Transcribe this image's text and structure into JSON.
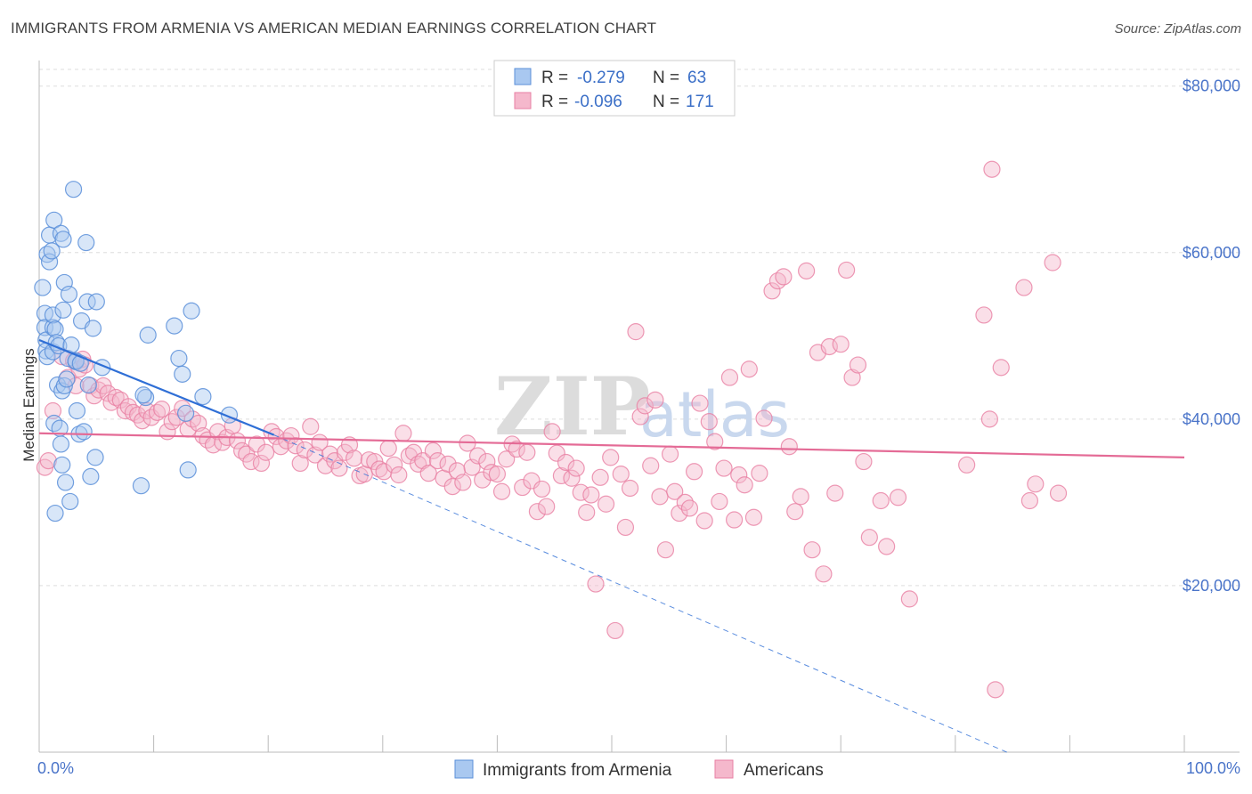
{
  "title": "IMMIGRANTS FROM ARMENIA VS AMERICAN MEDIAN EARNINGS CORRELATION CHART",
  "source": "Source: ZipAtlas.com",
  "watermark": {
    "zip": "ZIP",
    "atlas": "atlas"
  },
  "colors": {
    "blue_fill": "#a9c8f0",
    "blue_stroke": "#5b8fd9",
    "blue_line": "#2f6fd6",
    "pink_fill": "#f5b8cc",
    "pink_stroke": "#e87fa3",
    "pink_line": "#e46b96",
    "grid": "#dddddd",
    "tick_text": "#4a74c9"
  },
  "legend": {
    "rows": [
      {
        "r_label": "R =",
        "r_value": "-0.279",
        "n_label": "N =",
        "n_value": "63"
      },
      {
        "r_label": "R =",
        "r_value": "-0.096",
        "n_label": "N =",
        "n_value": "171"
      }
    ]
  },
  "bottom_legend": [
    "Immigrants from Armenia",
    "Americans"
  ],
  "chart_data": {
    "type": "scatter",
    "title": "IMMIGRANTS FROM ARMENIA VS AMERICAN MEDIAN EARNINGS CORRELATION CHART",
    "xlabel": "",
    "ylabel": "Median Earnings",
    "xlim": [
      0,
      100
    ],
    "ylim": [
      0,
      82000
    ],
    "x_tick_labels": [
      "0.0%",
      "100.0%"
    ],
    "y_ticks": [
      20000,
      40000,
      60000,
      80000
    ],
    "y_tick_labels": [
      "$20,000",
      "$40,000",
      "$60,000",
      "$80,000"
    ],
    "series": [
      {
        "name": "Immigrants from Armenia",
        "color": "blue",
        "points": [
          [
            0.3,
            55800
          ],
          [
            0.5,
            52700
          ],
          [
            0.5,
            51000
          ],
          [
            0.6,
            49500
          ],
          [
            0.6,
            48200
          ],
          [
            0.7,
            59800
          ],
          [
            0.7,
            47500
          ],
          [
            0.9,
            62100
          ],
          [
            0.9,
            58900
          ],
          [
            1.1,
            60200
          ],
          [
            1.2,
            48100
          ],
          [
            1.2,
            51000
          ],
          [
            1.2,
            52500
          ],
          [
            1.3,
            63900
          ],
          [
            1.3,
            39500
          ],
          [
            1.4,
            50800
          ],
          [
            1.4,
            28700
          ],
          [
            1.5,
            49200
          ],
          [
            1.6,
            44100
          ],
          [
            1.7,
            48800
          ],
          [
            1.8,
            38900
          ],
          [
            1.9,
            62300
          ],
          [
            1.9,
            37000
          ],
          [
            2.0,
            34500
          ],
          [
            2.0,
            43400
          ],
          [
            2.1,
            61600
          ],
          [
            2.1,
            53100
          ],
          [
            2.2,
            56400
          ],
          [
            2.2,
            44000
          ],
          [
            2.3,
            32400
          ],
          [
            2.4,
            44800
          ],
          [
            2.5,
            47300
          ],
          [
            2.6,
            55000
          ],
          [
            2.7,
            30100
          ],
          [
            2.8,
            48900
          ],
          [
            3.0,
            67600
          ],
          [
            3.2,
            46900
          ],
          [
            3.2,
            47000
          ],
          [
            3.3,
            41000
          ],
          [
            3.5,
            38200
          ],
          [
            3.6,
            46700
          ],
          [
            3.7,
            51800
          ],
          [
            3.9,
            38500
          ],
          [
            4.1,
            61200
          ],
          [
            4.2,
            54100
          ],
          [
            4.3,
            44100
          ],
          [
            4.5,
            33100
          ],
          [
            4.7,
            50900
          ],
          [
            4.9,
            35400
          ],
          [
            5.0,
            54100
          ],
          [
            5.5,
            46200
          ],
          [
            8.9,
            32000
          ],
          [
            9.3,
            42600
          ],
          [
            9.5,
            50100
          ],
          [
            11.8,
            51200
          ],
          [
            12.2,
            47300
          ],
          [
            12.5,
            45400
          ],
          [
            12.8,
            40700
          ],
          [
            13.0,
            33900
          ],
          [
            13.3,
            53000
          ],
          [
            14.3,
            42700
          ],
          [
            16.6,
            40500
          ],
          [
            9.1,
            42900
          ]
        ]
      },
      {
        "name": "Americans",
        "color": "pink",
        "points": [
          [
            0.5,
            34200
          ],
          [
            0.8,
            35000
          ],
          [
            1.2,
            41000
          ],
          [
            2.0,
            47500
          ],
          [
            2.5,
            45000
          ],
          [
            3.0,
            47000
          ],
          [
            3.2,
            44000
          ],
          [
            3.5,
            46000
          ],
          [
            3.8,
            47200
          ],
          [
            4.0,
            46500
          ],
          [
            4.5,
            44000
          ],
          [
            4.8,
            42800
          ],
          [
            5.2,
            43500
          ],
          [
            5.6,
            44000
          ],
          [
            6.0,
            43100
          ],
          [
            6.3,
            42000
          ],
          [
            6.7,
            42600
          ],
          [
            7.1,
            42300
          ],
          [
            7.5,
            41000
          ],
          [
            7.8,
            41500
          ],
          [
            8.2,
            40800
          ],
          [
            8.6,
            40500
          ],
          [
            9.0,
            39800
          ],
          [
            9.4,
            41000
          ],
          [
            9.8,
            40200
          ],
          [
            10.3,
            40800
          ],
          [
            10.7,
            41200
          ],
          [
            11.2,
            38500
          ],
          [
            11.6,
            39700
          ],
          [
            12.0,
            40200
          ],
          [
            12.5,
            41300
          ],
          [
            13.0,
            38800
          ],
          [
            13.4,
            40000
          ],
          [
            13.9,
            39500
          ],
          [
            14.3,
            38000
          ],
          [
            14.7,
            37500
          ],
          [
            15.2,
            36900
          ],
          [
            15.6,
            38500
          ],
          [
            16.0,
            37200
          ],
          [
            16.4,
            37800
          ],
          [
            16.9,
            39200
          ],
          [
            17.3,
            37400
          ],
          [
            17.7,
            36200
          ],
          [
            18.1,
            35800
          ],
          [
            18.5,
            34900
          ],
          [
            19.0,
            37000
          ],
          [
            19.4,
            34700
          ],
          [
            19.8,
            36000
          ],
          [
            20.3,
            38500
          ],
          [
            20.7,
            37900
          ],
          [
            21.1,
            36700
          ],
          [
            21.6,
            37400
          ],
          [
            22.0,
            38000
          ],
          [
            22.4,
            36800
          ],
          [
            22.8,
            34700
          ],
          [
            23.2,
            36300
          ],
          [
            23.7,
            39100
          ],
          [
            24.1,
            35700
          ],
          [
            24.5,
            37200
          ],
          [
            25.0,
            34400
          ],
          [
            25.4,
            35800
          ],
          [
            25.8,
            35000
          ],
          [
            26.2,
            34100
          ],
          [
            26.7,
            36000
          ],
          [
            27.1,
            36900
          ],
          [
            27.5,
            35300
          ],
          [
            28.0,
            33200
          ],
          [
            28.4,
            33400
          ],
          [
            28.8,
            35100
          ],
          [
            29.3,
            34900
          ],
          [
            29.7,
            34000
          ],
          [
            30.1,
            33700
          ],
          [
            30.5,
            36500
          ],
          [
            31.0,
            34500
          ],
          [
            31.4,
            33300
          ],
          [
            31.8,
            38300
          ],
          [
            32.3,
            35600
          ],
          [
            32.7,
            36000
          ],
          [
            33.1,
            34600
          ],
          [
            33.5,
            35000
          ],
          [
            34.0,
            33500
          ],
          [
            34.4,
            36200
          ],
          [
            34.8,
            35000
          ],
          [
            35.3,
            32900
          ],
          [
            35.7,
            34600
          ],
          [
            36.1,
            31900
          ],
          [
            36.5,
            33800
          ],
          [
            37.0,
            32400
          ],
          [
            37.4,
            37100
          ],
          [
            37.8,
            34200
          ],
          [
            38.3,
            35600
          ],
          [
            38.7,
            32700
          ],
          [
            39.1,
            34900
          ],
          [
            39.5,
            33600
          ],
          [
            40.0,
            33400
          ],
          [
            40.4,
            31300
          ],
          [
            40.8,
            35200
          ],
          [
            41.3,
            37000
          ],
          [
            41.7,
            36400
          ],
          [
            42.2,
            31800
          ],
          [
            42.6,
            36000
          ],
          [
            43.0,
            32600
          ],
          [
            43.5,
            28900
          ],
          [
            43.9,
            31600
          ],
          [
            44.3,
            29500
          ],
          [
            44.8,
            38500
          ],
          [
            45.2,
            35900
          ],
          [
            45.6,
            33200
          ],
          [
            46.0,
            34800
          ],
          [
            46.5,
            32900
          ],
          [
            46.9,
            34100
          ],
          [
            47.3,
            31200
          ],
          [
            47.8,
            28800
          ],
          [
            48.2,
            30900
          ],
          [
            48.6,
            20200
          ],
          [
            49.0,
            33000
          ],
          [
            49.5,
            29800
          ],
          [
            49.9,
            35400
          ],
          [
            50.3,
            14600
          ],
          [
            50.8,
            33400
          ],
          [
            51.2,
            27000
          ],
          [
            51.6,
            31700
          ],
          [
            52.1,
            50500
          ],
          [
            52.5,
            40300
          ],
          [
            52.9,
            41600
          ],
          [
            53.4,
            34400
          ],
          [
            53.8,
            42300
          ],
          [
            54.2,
            30700
          ],
          [
            54.7,
            24300
          ],
          [
            55.1,
            35800
          ],
          [
            55.5,
            31300
          ],
          [
            55.9,
            28700
          ],
          [
            56.4,
            30000
          ],
          [
            56.8,
            29300
          ],
          [
            57.2,
            33700
          ],
          [
            57.7,
            41900
          ],
          [
            58.1,
            27800
          ],
          [
            58.5,
            39700
          ],
          [
            59.0,
            37300
          ],
          [
            59.4,
            30100
          ],
          [
            59.8,
            34100
          ],
          [
            60.3,
            45000
          ],
          [
            60.7,
            27900
          ],
          [
            61.1,
            33300
          ],
          [
            61.6,
            32100
          ],
          [
            62.0,
            46000
          ],
          [
            62.4,
            28200
          ],
          [
            62.9,
            33500
          ],
          [
            63.3,
            40100
          ],
          [
            64.0,
            55400
          ],
          [
            64.5,
            56600
          ],
          [
            65.0,
            57100
          ],
          [
            65.5,
            36700
          ],
          [
            66.0,
            28900
          ],
          [
            66.5,
            30700
          ],
          [
            67.0,
            57800
          ],
          [
            67.5,
            24300
          ],
          [
            68.0,
            48000
          ],
          [
            68.5,
            21400
          ],
          [
            69.0,
            48700
          ],
          [
            69.5,
            31100
          ],
          [
            70.0,
            49000
          ],
          [
            70.5,
            57900
          ],
          [
            71.0,
            45000
          ],
          [
            71.5,
            46500
          ],
          [
            72.0,
            34900
          ],
          [
            72.5,
            25800
          ],
          [
            73.5,
            30200
          ],
          [
            74.0,
            24700
          ],
          [
            75.0,
            30600
          ],
          [
            76.0,
            18400
          ]
        ]
      }
    ],
    "extra_pink_points": [
      [
        81.0,
        34500
      ],
      [
        82.5,
        52500
      ],
      [
        83.0,
        40000
      ],
      [
        83.2,
        70000
      ],
      [
        83.5,
        7500
      ],
      [
        84.0,
        46200
      ],
      [
        86.0,
        55800
      ],
      [
        86.5,
        30200
      ],
      [
        87.0,
        32200
      ],
      [
        88.5,
        58800
      ],
      [
        89.0,
        31100
      ]
    ],
    "trend_lines": [
      {
        "series": "Immigrants from Armenia",
        "x": [
          0,
          20.5
        ],
        "y": [
          49500,
          38100
        ],
        "style": "solid"
      },
      {
        "series": "Immigrants from Armenia",
        "x": [
          20.5,
          84.5
        ],
        "y": [
          38100,
          0
        ],
        "style": "dashed"
      },
      {
        "series": "Americans",
        "x": [
          0,
          100
        ],
        "y": [
          38300,
          35400
        ],
        "style": "solid"
      }
    ]
  }
}
